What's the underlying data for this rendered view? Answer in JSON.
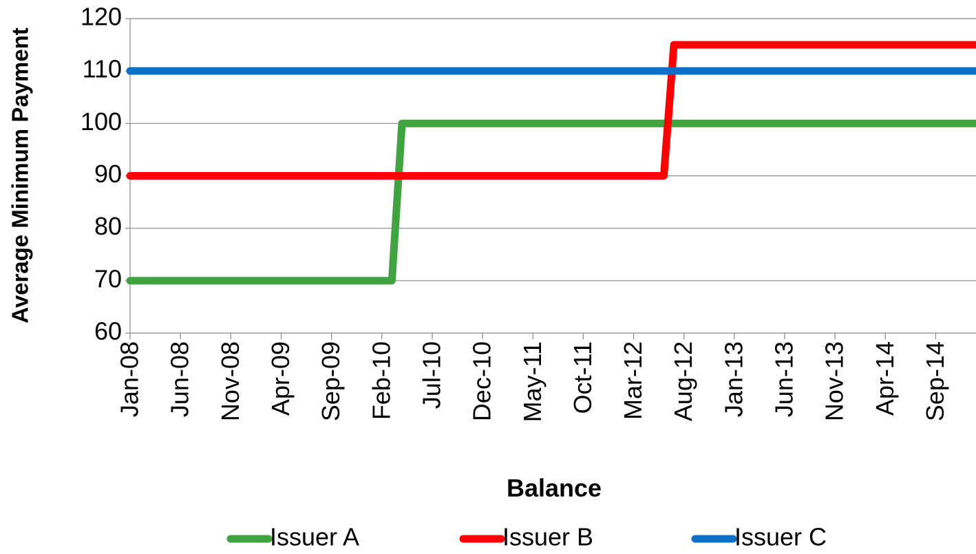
{
  "chart_data": {
    "type": "line",
    "y_label": "Average Minimum Payment",
    "x_label": "Balance",
    "categories": [
      "Jan-08",
      null,
      null,
      null,
      null,
      "Jun-08",
      null,
      null,
      null,
      null,
      "Nov-08",
      null,
      null,
      null,
      null,
      "Apr-09",
      null,
      null,
      null,
      null,
      "Sep-09",
      null,
      null,
      null,
      null,
      "Feb-10",
      null,
      null,
      null,
      null,
      "Jul-10",
      null,
      null,
      null,
      null,
      "Dec-10",
      null,
      null,
      null,
      null,
      "May-11",
      null,
      null,
      null,
      null,
      "Oct-11",
      null,
      null,
      null,
      null,
      "Mar-12",
      null,
      null,
      null,
      null,
      "Aug-12",
      null,
      null,
      null,
      null,
      "Jan-13",
      null,
      null,
      null,
      null,
      "Jun-13",
      null,
      null,
      null,
      null,
      "Nov-13",
      null,
      null,
      null,
      null,
      "Apr-14",
      null,
      null,
      null,
      null,
      "Sep-14",
      null,
      null,
      null,
      null
    ],
    "series": [
      {
        "name": "Issuer A",
        "color": "#3fa33f",
        "values": [
          70,
          70,
          70,
          70,
          70,
          70,
          70,
          70,
          70,
          70,
          70,
          70,
          70,
          70,
          70,
          70,
          70,
          70,
          70,
          70,
          70,
          70,
          70,
          70,
          70,
          70,
          70,
          100,
          100,
          100,
          100,
          100,
          100,
          100,
          100,
          100,
          100,
          100,
          100,
          100,
          100,
          100,
          100,
          100,
          100,
          100,
          100,
          100,
          100,
          100,
          100,
          100,
          100,
          100,
          100,
          100,
          100,
          100,
          100,
          100,
          100,
          100,
          100,
          100,
          100,
          100,
          100,
          100,
          100,
          100,
          100,
          100,
          100,
          100,
          100,
          100,
          100,
          100,
          100,
          100,
          100,
          100,
          100,
          100,
          100
        ]
      },
      {
        "name": "Issuer B",
        "color": "#ff0000",
        "values": [
          90,
          90,
          90,
          90,
          90,
          90,
          90,
          90,
          90,
          90,
          90,
          90,
          90,
          90,
          90,
          90,
          90,
          90,
          90,
          90,
          90,
          90,
          90,
          90,
          90,
          90,
          90,
          90,
          90,
          90,
          90,
          90,
          90,
          90,
          90,
          90,
          90,
          90,
          90,
          90,
          90,
          90,
          90,
          90,
          90,
          90,
          90,
          90,
          90,
          90,
          90,
          90,
          90,
          90,
          115,
          115,
          115,
          115,
          115,
          115,
          115,
          115,
          115,
          115,
          115,
          115,
          115,
          115,
          115,
          115,
          115,
          115,
          115,
          115,
          115,
          115,
          115,
          115,
          115,
          115,
          115,
          115,
          115,
          115,
          115
        ]
      },
      {
        "name": "Issuer C",
        "color": "#0a70c8",
        "values": [
          110,
          110,
          110,
          110,
          110,
          110,
          110,
          110,
          110,
          110,
          110,
          110,
          110,
          110,
          110,
          110,
          110,
          110,
          110,
          110,
          110,
          110,
          110,
          110,
          110,
          110,
          110,
          110,
          110,
          110,
          110,
          110,
          110,
          110,
          110,
          110,
          110,
          110,
          110,
          110,
          110,
          110,
          110,
          110,
          110,
          110,
          110,
          110,
          110,
          110,
          110,
          110,
          110,
          110,
          110,
          110,
          110,
          110,
          110,
          110,
          110,
          110,
          110,
          110,
          110,
          110,
          110,
          110,
          110,
          110,
          110,
          110,
          110,
          110,
          110,
          110,
          110,
          110,
          110,
          110,
          110,
          110,
          110,
          110,
          110
        ]
      }
    ],
    "ylim": [
      60,
      120
    ],
    "yticks": [
      60,
      70,
      80,
      90,
      100,
      110,
      120
    ],
    "grid": true,
    "legend": "bottom"
  }
}
